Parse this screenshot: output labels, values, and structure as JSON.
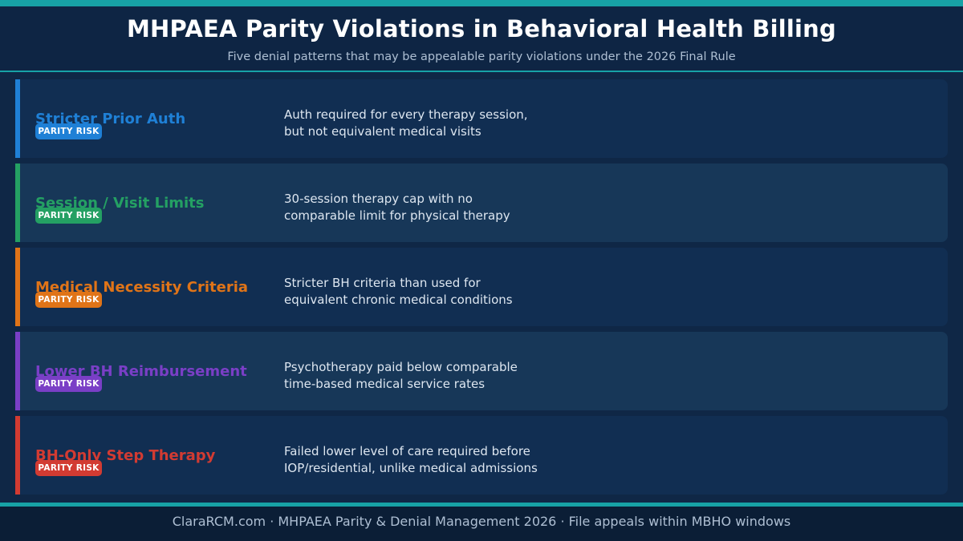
{
  "header": {
    "title": "MHPAEA Parity Violations in Behavioral Health Billing",
    "subtitle": "Five denial patterns that may be appealable parity violations under the 2026 Final Rule"
  },
  "rows": [
    {
      "title": "Stricter Prior Auth",
      "badge": "PARITY RISK",
      "desc_line1": "Auth required for every therapy session,",
      "desc_line2": "but not equivalent medical visits",
      "color": "#1f80d6"
    },
    {
      "title": "Session / Visit Limits",
      "badge": "PARITY RISK",
      "desc_line1": "30-session therapy cap with no",
      "desc_line2": "comparable limit for physical therapy",
      "color": "#24a063"
    },
    {
      "title": "Medical Necessity Criteria",
      "badge": "PARITY RISK",
      "desc_line1": "Stricter BH criteria than used for",
      "desc_line2": "equivalent chronic medical conditions",
      "color": "#e07418"
    },
    {
      "title": "Lower BH Reimbursement",
      "badge": "PARITY RISK",
      "desc_line1": "Psychotherapy paid below comparable",
      "desc_line2": "time-based medical service rates",
      "color": "#7a3fc6"
    },
    {
      "title": "BH-Only Step Therapy",
      "badge": "PARITY RISK",
      "desc_line1": "Failed lower level of care required before",
      "desc_line2": "IOP/residential, unlike medical admissions",
      "color": "#d23b32"
    }
  ],
  "footer": {
    "text": "ClaraRCM.com · MHPAEA Parity & Denial Management 2026 · File appeals within MBHO windows"
  },
  "colors": {
    "background": "#0f2746",
    "accent": "#17a2a6"
  }
}
